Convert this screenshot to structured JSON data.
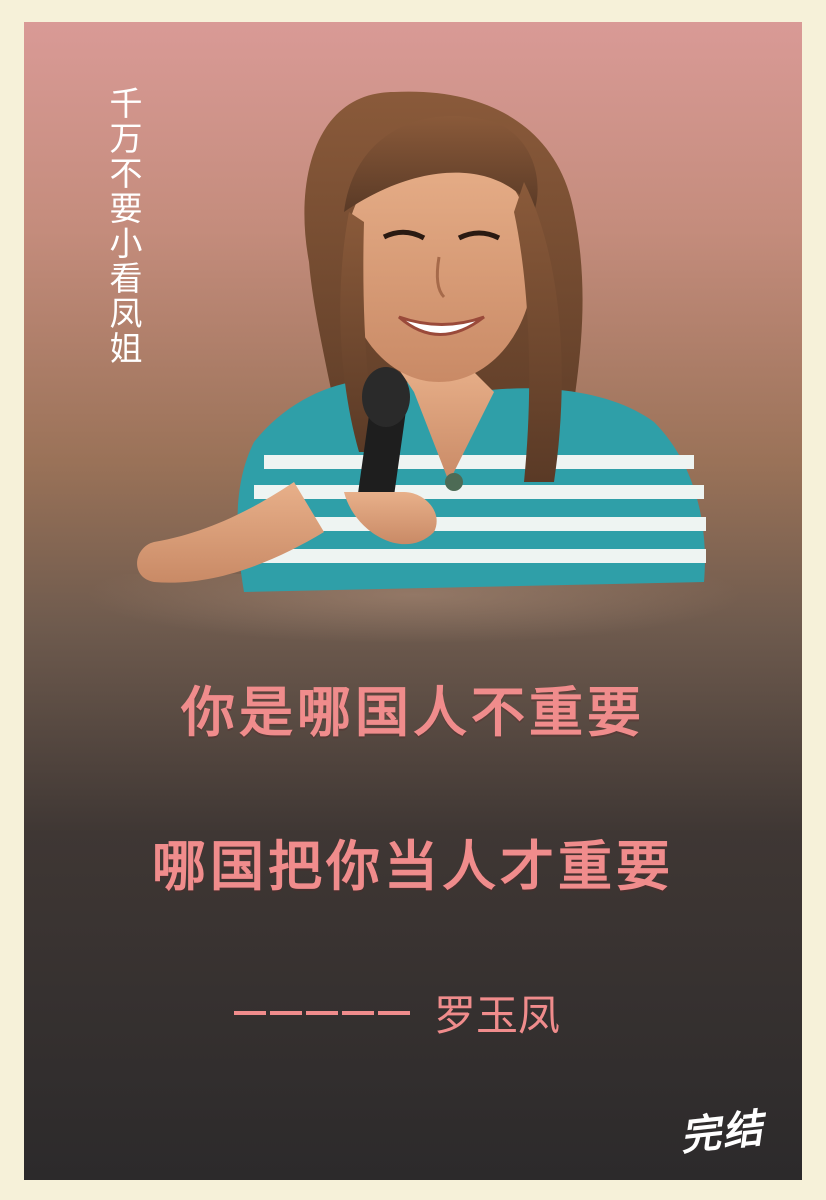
{
  "side_text": "千万不要小看凤姐",
  "quote": {
    "line1": "你是哪国人不重要",
    "line2": "哪国把你当人才重要"
  },
  "attribution": {
    "name": "罗玉凤"
  },
  "end_mark": "完结",
  "colors": {
    "quote": "#f08c8c",
    "top_background": "#d99a96",
    "bottom_background": "#2c2a2b",
    "border": "#f6f1d9",
    "shirt_teal": "#2f9fa8",
    "shirt_white": "#eef4f2"
  }
}
